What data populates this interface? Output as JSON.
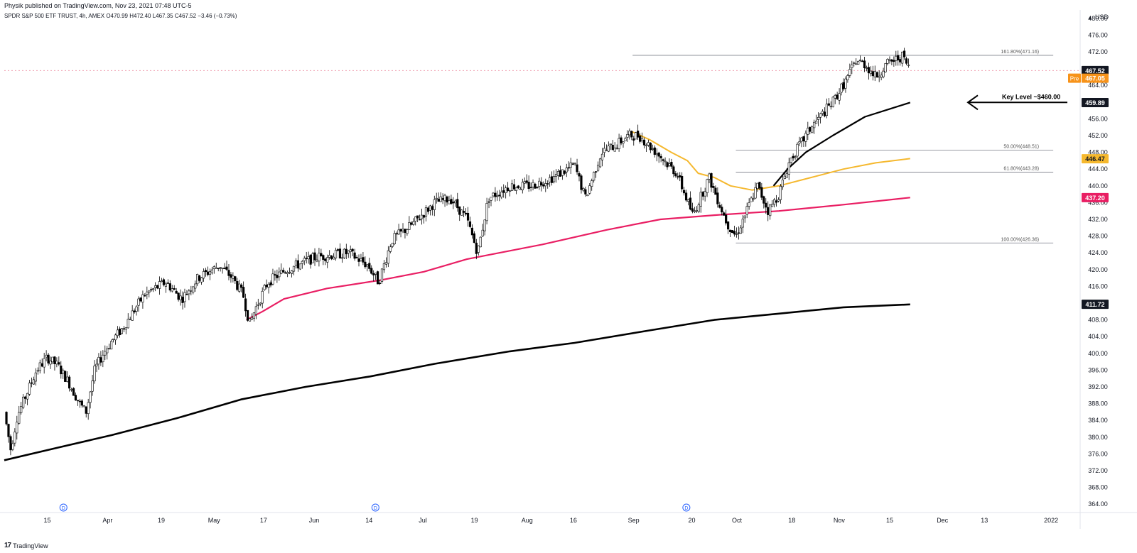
{
  "publisher": "Physik published on TradingView.com, Nov 23, 2021 07:48 UTC-5",
  "brand": {
    "logo": "17",
    "name": "TradingView"
  },
  "chart_data": {
    "type": "candlestick",
    "symbol_line": "SPDR S&P 500 ETF TRUST, 4h, AMEX  O470.99 H472.40 L467.35 C467.52 −3.46 (−0.73%)",
    "currency": "USD",
    "ylim": [
      362,
      482
    ],
    "y_ticks": [
      364,
      368,
      372,
      376,
      380,
      384,
      388,
      392,
      396,
      400,
      404,
      408,
      412,
      416,
      420,
      424,
      428,
      432,
      436,
      440,
      444,
      448,
      452,
      456,
      460,
      464,
      468,
      472,
      476,
      480
    ],
    "x_ticks": [
      {
        "label": "15",
        "pos": 0.04
      },
      {
        "label": "Apr",
        "pos": 0.096
      },
      {
        "label": "19",
        "pos": 0.146
      },
      {
        "label": "May",
        "pos": 0.195
      },
      {
        "label": "17",
        "pos": 0.241
      },
      {
        "label": "Jun",
        "pos": 0.288
      },
      {
        "label": "14",
        "pos": 0.339
      },
      {
        "label": "Jul",
        "pos": 0.389
      },
      {
        "label": "19",
        "pos": 0.437
      },
      {
        "label": "Aug",
        "pos": 0.486
      },
      {
        "label": "16",
        "pos": 0.529
      },
      {
        "label": "Sep",
        "pos": 0.585
      },
      {
        "label": "20",
        "pos": 0.639
      },
      {
        "label": "Oct",
        "pos": 0.681
      },
      {
        "label": "18",
        "pos": 0.732
      },
      {
        "label": "Nov",
        "pos": 0.776
      },
      {
        "label": "15",
        "pos": 0.823
      },
      {
        "label": "Dec",
        "pos": 0.872
      },
      {
        "label": "13",
        "pos": 0.911
      },
      {
        "label": "2022",
        "pos": 0.973
      }
    ],
    "dividend_markers": [
      {
        "label": "D",
        "pos": 0.055
      },
      {
        "label": "D",
        "pos": 0.345
      },
      {
        "label": "D",
        "pos": 0.634
      }
    ],
    "price_path": [
      [
        0.0,
        386
      ],
      [
        0.006,
        377
      ],
      [
        0.012,
        385
      ],
      [
        0.03,
        396
      ],
      [
        0.04,
        399
      ],
      [
        0.05,
        397
      ],
      [
        0.06,
        393
      ],
      [
        0.07,
        388
      ],
      [
        0.076,
        386
      ],
      [
        0.084,
        396
      ],
      [
        0.092,
        400
      ],
      [
        0.1,
        403
      ],
      [
        0.11,
        406
      ],
      [
        0.13,
        414
      ],
      [
        0.15,
        417
      ],
      [
        0.165,
        413
      ],
      [
        0.18,
        418
      ],
      [
        0.2,
        421
      ],
      [
        0.212,
        418
      ],
      [
        0.222,
        414
      ],
      [
        0.228,
        407
      ],
      [
        0.234,
        411
      ],
      [
        0.245,
        417
      ],
      [
        0.262,
        420
      ],
      [
        0.29,
        423
      ],
      [
        0.32,
        424
      ],
      [
        0.338,
        421
      ],
      [
        0.348,
        417
      ],
      [
        0.36,
        427
      ],
      [
        0.38,
        431
      ],
      [
        0.4,
        436
      ],
      [
        0.415,
        437
      ],
      [
        0.43,
        432
      ],
      [
        0.44,
        424
      ],
      [
        0.45,
        437
      ],
      [
        0.47,
        440
      ],
      [
        0.49,
        440
      ],
      [
        0.51,
        442
      ],
      [
        0.53,
        445
      ],
      [
        0.54,
        437
      ],
      [
        0.555,
        448
      ],
      [
        0.57,
        450
      ],
      [
        0.58,
        452
      ],
      [
        0.59,
        452
      ],
      [
        0.61,
        447
      ],
      [
        0.625,
        443
      ],
      [
        0.64,
        433
      ],
      [
        0.655,
        442
      ],
      [
        0.672,
        431
      ],
      [
        0.68,
        428
      ],
      [
        0.69,
        434
      ],
      [
        0.7,
        440
      ],
      [
        0.71,
        434
      ],
      [
        0.72,
        438
      ],
      [
        0.73,
        446
      ],
      [
        0.75,
        454
      ],
      [
        0.77,
        460
      ],
      [
        0.782,
        465
      ],
      [
        0.792,
        470
      ],
      [
        0.8,
        469
      ],
      [
        0.81,
        466
      ],
      [
        0.82,
        469
      ],
      [
        0.835,
        471
      ],
      [
        0.842,
        467.5
      ]
    ],
    "moving_averages": [
      {
        "color": "#000000",
        "width": 2.6,
        "points": [
          [
            0.0,
            374.5
          ],
          [
            0.05,
            377.5
          ],
          [
            0.1,
            380.5
          ],
          [
            0.16,
            384.5
          ],
          [
            0.22,
            389
          ],
          [
            0.28,
            392
          ],
          [
            0.34,
            394.5
          ],
          [
            0.4,
            397.5
          ],
          [
            0.47,
            400.5
          ],
          [
            0.53,
            402.5
          ],
          [
            0.6,
            405.5
          ],
          [
            0.66,
            408
          ],
          [
            0.72,
            409.5
          ],
          [
            0.78,
            411
          ],
          [
            0.842,
            411.7
          ]
        ]
      },
      {
        "color": "#e91e63",
        "width": 2.2,
        "points": [
          [
            0.225,
            408
          ],
          [
            0.24,
            410
          ],
          [
            0.26,
            413
          ],
          [
            0.3,
            415.5
          ],
          [
            0.35,
            417.5
          ],
          [
            0.39,
            419.5
          ],
          [
            0.43,
            422.5
          ],
          [
            0.5,
            426
          ],
          [
            0.56,
            429.5
          ],
          [
            0.61,
            432
          ],
          [
            0.66,
            433
          ],
          [
            0.72,
            434
          ],
          [
            0.78,
            435.5
          ],
          [
            0.842,
            437.2
          ]
        ]
      },
      {
        "color": "#f5b82e",
        "width": 2.0,
        "points": [
          [
            0.583,
            453
          ],
          [
            0.6,
            451
          ],
          [
            0.62,
            448
          ],
          [
            0.635,
            446
          ],
          [
            0.645,
            443
          ],
          [
            0.66,
            442
          ],
          [
            0.675,
            440
          ],
          [
            0.695,
            439
          ],
          [
            0.72,
            440
          ],
          [
            0.75,
            442
          ],
          [
            0.78,
            444
          ],
          [
            0.81,
            445.5
          ],
          [
            0.842,
            446.5
          ]
        ]
      },
      {
        "color": "#000000",
        "width": 2.2,
        "points": [
          [
            0.715,
            440
          ],
          [
            0.728,
            444
          ],
          [
            0.745,
            448
          ],
          [
            0.77,
            452
          ],
          [
            0.8,
            456.5
          ],
          [
            0.825,
            458.5
          ],
          [
            0.842,
            459.9
          ]
        ]
      }
    ],
    "fib_levels": [
      {
        "label": "161.80%(471.16)",
        "value": 471.16,
        "from": 0.584
      },
      {
        "label": "50.00%(448.51)",
        "value": 448.51,
        "from": 0.68
      },
      {
        "label": "61.80%(443.28)",
        "value": 443.28,
        "from": 0.68
      },
      {
        "label": "100.00%(426.36)",
        "value": 426.36,
        "from": 0.68
      }
    ],
    "fib_end": 0.975,
    "price_tags": [
      {
        "label": "467.52",
        "value": 467.52,
        "bg": "#131722",
        "fg": "#ffffff"
      },
      {
        "label": "467.05",
        "value": 465.7,
        "bg": "#f7931a",
        "fg": "#ffffff",
        "badge": "Pre"
      },
      {
        "label": "459.89",
        "value": 459.89,
        "bg": "#131722",
        "fg": "#ffffff"
      },
      {
        "label": "446.47",
        "value": 446.47,
        "bg": "#f5b82e",
        "fg": "#131722"
      },
      {
        "label": "437.20",
        "value": 437.2,
        "bg": "#e91e63",
        "fg": "#ffffff"
      },
      {
        "label": "411.72",
        "value": 411.72,
        "bg": "#131722",
        "fg": "#ffffff"
      }
    ],
    "current_price": 467.52,
    "annotation": {
      "text": "Key Level ~$460.00",
      "value": 460.6
    },
    "colors": {
      "up": "#ffffff",
      "down": "#000000",
      "axis": "#e0e3eb",
      "text": "#131722"
    }
  }
}
